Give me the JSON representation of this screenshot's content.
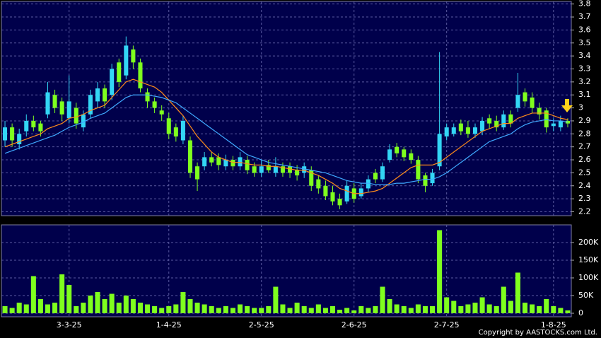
{
  "chart_data": [
    {
      "type": "candlestick",
      "up_color": "#33d6f5",
      "down_color": "#7fff1e",
      "ylim": [
        2.17,
        3.82
      ],
      "yticks": [
        2.2,
        2.3,
        2.4,
        2.5,
        2.6,
        2.7,
        2.8,
        2.9,
        3,
        3.1,
        3.2,
        3.3,
        3.4,
        3.5,
        3.6,
        3.7,
        3.8
      ],
      "grid": true,
      "open": [
        2.75,
        2.85,
        2.72,
        2.82,
        2.9,
        2.88,
        2.95,
        3.1,
        3.05,
        2.92,
        3.0,
        2.85,
        2.95,
        3.05,
        3.15,
        3.1,
        3.35,
        3.25,
        3.45,
        3.35,
        3.12,
        3.05,
        2.98,
        2.92,
        2.85,
        2.75,
        2.75,
        2.55,
        2.55,
        2.62,
        2.62,
        2.55,
        2.6,
        2.55,
        2.6,
        2.55,
        2.5,
        2.56,
        2.5,
        2.55,
        2.55,
        2.52,
        2.5,
        2.52,
        2.45,
        2.4,
        2.35,
        2.3,
        2.28,
        2.38,
        2.32,
        2.38,
        2.5,
        2.45,
        2.6,
        2.7,
        2.68,
        2.65,
        2.6,
        2.48,
        2.42,
        2.55,
        2.78,
        2.8,
        2.88,
        2.85,
        2.8,
        2.82,
        2.92,
        2.9,
        2.85,
        2.95,
        3.0,
        3.12,
        3.08,
        3.0,
        2.98,
        2.86,
        2.85,
        2.9
      ],
      "high": [
        2.9,
        2.88,
        2.84,
        2.95,
        2.94,
        2.9,
        3.2,
        3.14,
        3.08,
        3.25,
        3.04,
        2.98,
        3.14,
        3.2,
        3.18,
        3.34,
        3.38,
        3.55,
        3.48,
        3.38,
        3.15,
        3.08,
        3.02,
        2.96,
        2.88,
        2.94,
        2.78,
        2.58,
        2.66,
        2.66,
        2.65,
        2.64,
        2.63,
        2.66,
        2.63,
        2.58,
        2.6,
        2.6,
        2.62,
        2.58,
        2.58,
        2.56,
        2.58,
        2.55,
        2.48,
        2.44,
        2.4,
        2.34,
        2.44,
        2.42,
        2.42,
        2.48,
        2.53,
        2.58,
        2.72,
        2.73,
        2.7,
        2.68,
        2.63,
        2.5,
        2.53,
        3.43,
        2.88,
        2.88,
        2.91,
        2.9,
        2.88,
        2.93,
        2.95,
        2.94,
        2.98,
        2.98,
        3.27,
        3.15,
        3.12,
        3.04,
        3.0,
        2.92,
        2.94,
        2.92
      ],
      "low": [
        2.7,
        2.7,
        2.68,
        2.78,
        2.82,
        2.78,
        2.92,
        2.96,
        2.9,
        2.88,
        2.84,
        2.82,
        2.92,
        3.0,
        3.0,
        3.06,
        3.16,
        3.22,
        3.3,
        3.12,
        3.0,
        2.96,
        2.9,
        2.76,
        2.74,
        2.72,
        2.46,
        2.36,
        2.52,
        2.55,
        2.52,
        2.52,
        2.52,
        2.52,
        2.49,
        2.47,
        2.47,
        2.5,
        2.47,
        2.47,
        2.46,
        2.44,
        2.46,
        2.36,
        2.34,
        2.29,
        2.25,
        2.22,
        2.26,
        2.27,
        2.3,
        2.35,
        2.42,
        2.43,
        2.58,
        2.62,
        2.59,
        2.57,
        2.42,
        2.35,
        2.4,
        2.52,
        2.75,
        2.78,
        2.79,
        2.77,
        2.77,
        2.79,
        2.84,
        2.82,
        2.83,
        2.85,
        2.97,
        3.01,
        2.96,
        2.91,
        2.81,
        2.82,
        2.82,
        2.85
      ],
      "close": [
        2.85,
        2.75,
        2.8,
        2.9,
        2.85,
        2.82,
        3.12,
        3.0,
        2.95,
        3.05,
        2.88,
        2.95,
        3.1,
        3.15,
        3.05,
        3.3,
        3.2,
        3.48,
        3.35,
        3.15,
        3.05,
        3.0,
        2.95,
        2.8,
        2.78,
        2.9,
        2.5,
        2.45,
        2.62,
        2.58,
        2.56,
        2.6,
        2.55,
        2.62,
        2.52,
        2.5,
        2.55,
        2.52,
        2.55,
        2.5,
        2.5,
        2.48,
        2.55,
        2.4,
        2.38,
        2.32,
        2.28,
        2.25,
        2.4,
        2.3,
        2.38,
        2.45,
        2.45,
        2.55,
        2.68,
        2.65,
        2.62,
        2.6,
        2.45,
        2.4,
        2.5,
        2.8,
        2.85,
        2.85,
        2.82,
        2.8,
        2.85,
        2.9,
        2.88,
        2.85,
        2.95,
        2.88,
        3.1,
        3.05,
        3.0,
        2.95,
        2.85,
        2.88,
        2.9,
        2.88
      ],
      "lines": [
        {
          "color": "#ff8c1a",
          "values": [
            2.7,
            2.72,
            2.74,
            2.76,
            2.78,
            2.8,
            2.84,
            2.86,
            2.88,
            2.92,
            2.93,
            2.95,
            2.98,
            3.0,
            3.02,
            3.08,
            3.14,
            3.2,
            3.22,
            3.2,
            3.18,
            3.16,
            3.12,
            3.06,
            3.0,
            2.94,
            2.86,
            2.78,
            2.72,
            2.66,
            2.62,
            2.6,
            2.58,
            2.58,
            2.57,
            2.56,
            2.56,
            2.55,
            2.55,
            2.54,
            2.53,
            2.52,
            2.52,
            2.5,
            2.48,
            2.45,
            2.42,
            2.38,
            2.36,
            2.34,
            2.34,
            2.35,
            2.36,
            2.38,
            2.42,
            2.46,
            2.5,
            2.54,
            2.56,
            2.56,
            2.56,
            2.58,
            2.62,
            2.66,
            2.7,
            2.74,
            2.78,
            2.82,
            2.84,
            2.86,
            2.88,
            2.88,
            2.92,
            2.94,
            2.96,
            2.96,
            2.96,
            2.94,
            2.92,
            2.91
          ]
        },
        {
          "color": "#3fa9ff",
          "values": [
            2.65,
            2.67,
            2.69,
            2.71,
            2.73,
            2.75,
            2.77,
            2.79,
            2.82,
            2.85,
            2.87,
            2.89,
            2.92,
            2.94,
            2.96,
            3.0,
            3.04,
            3.08,
            3.1,
            3.1,
            3.1,
            3.09,
            3.08,
            3.06,
            3.04,
            3.0,
            2.96,
            2.92,
            2.88,
            2.84,
            2.8,
            2.76,
            2.72,
            2.68,
            2.64,
            2.62,
            2.6,
            2.58,
            2.57,
            2.56,
            2.55,
            2.54,
            2.53,
            2.52,
            2.51,
            2.5,
            2.48,
            2.46,
            2.44,
            2.43,
            2.42,
            2.42,
            2.41,
            2.41,
            2.41,
            2.42,
            2.42,
            2.43,
            2.44,
            2.45,
            2.45,
            2.47,
            2.5,
            2.54,
            2.58,
            2.62,
            2.66,
            2.7,
            2.74,
            2.76,
            2.78,
            2.8,
            2.84,
            2.87,
            2.89,
            2.9,
            2.91,
            2.9,
            2.9,
            2.89
          ]
        }
      ]
    },
    {
      "type": "bar",
      "color": "#7fff1e",
      "ylim": [
        -10000,
        250000
      ],
      "yticks": [
        0,
        {
          "value": 50000,
          "label": "50K"
        },
        {
          "value": 100000,
          "label": "100K"
        },
        {
          "value": 150000,
          "label": "150K"
        },
        {
          "value": 200000,
          "label": "200K"
        }
      ],
      "grid": true,
      "categories": [
        null,
        null,
        null,
        null,
        null,
        null,
        null,
        null,
        null,
        "3-3-25",
        null,
        null,
        null,
        null,
        null,
        null,
        null,
        null,
        null,
        null,
        null,
        null,
        null,
        "1-4-25",
        null,
        null,
        null,
        null,
        null,
        null,
        null,
        null,
        null,
        null,
        null,
        null,
        "2-5-25",
        null,
        null,
        null,
        null,
        null,
        null,
        null,
        null,
        null,
        null,
        null,
        null,
        "2-6-25",
        null,
        null,
        null,
        null,
        null,
        null,
        null,
        null,
        null,
        null,
        null,
        null,
        "2-7-25",
        null,
        null,
        null,
        null,
        null,
        null,
        null,
        null,
        null,
        null,
        null,
        null,
        null,
        null,
        "1-8-25",
        null,
        null
      ],
      "values": [
        20000,
        15000,
        30000,
        25000,
        105000,
        40000,
        25000,
        30000,
        110000,
        80000,
        20000,
        30000,
        50000,
        60000,
        40000,
        55000,
        30000,
        50000,
        40000,
        30000,
        25000,
        20000,
        15000,
        20000,
        25000,
        60000,
        40000,
        30000,
        25000,
        20000,
        15000,
        20000,
        15000,
        25000,
        20000,
        15000,
        15000,
        20000,
        75000,
        25000,
        15000,
        30000,
        20000,
        15000,
        25000,
        15000,
        20000,
        10000,
        15000,
        8000,
        20000,
        15000,
        20000,
        75000,
        40000,
        25000,
        20000,
        15000,
        25000,
        20000,
        20000,
        235000,
        45000,
        35000,
        20000,
        25000,
        30000,
        45000,
        25000,
        20000,
        75000,
        35000,
        115000,
        30000,
        25000,
        20000,
        40000,
        20000,
        15000,
        8000
      ]
    }
  ],
  "copyright": "Copyright by AASTOCKS.com Ltd."
}
